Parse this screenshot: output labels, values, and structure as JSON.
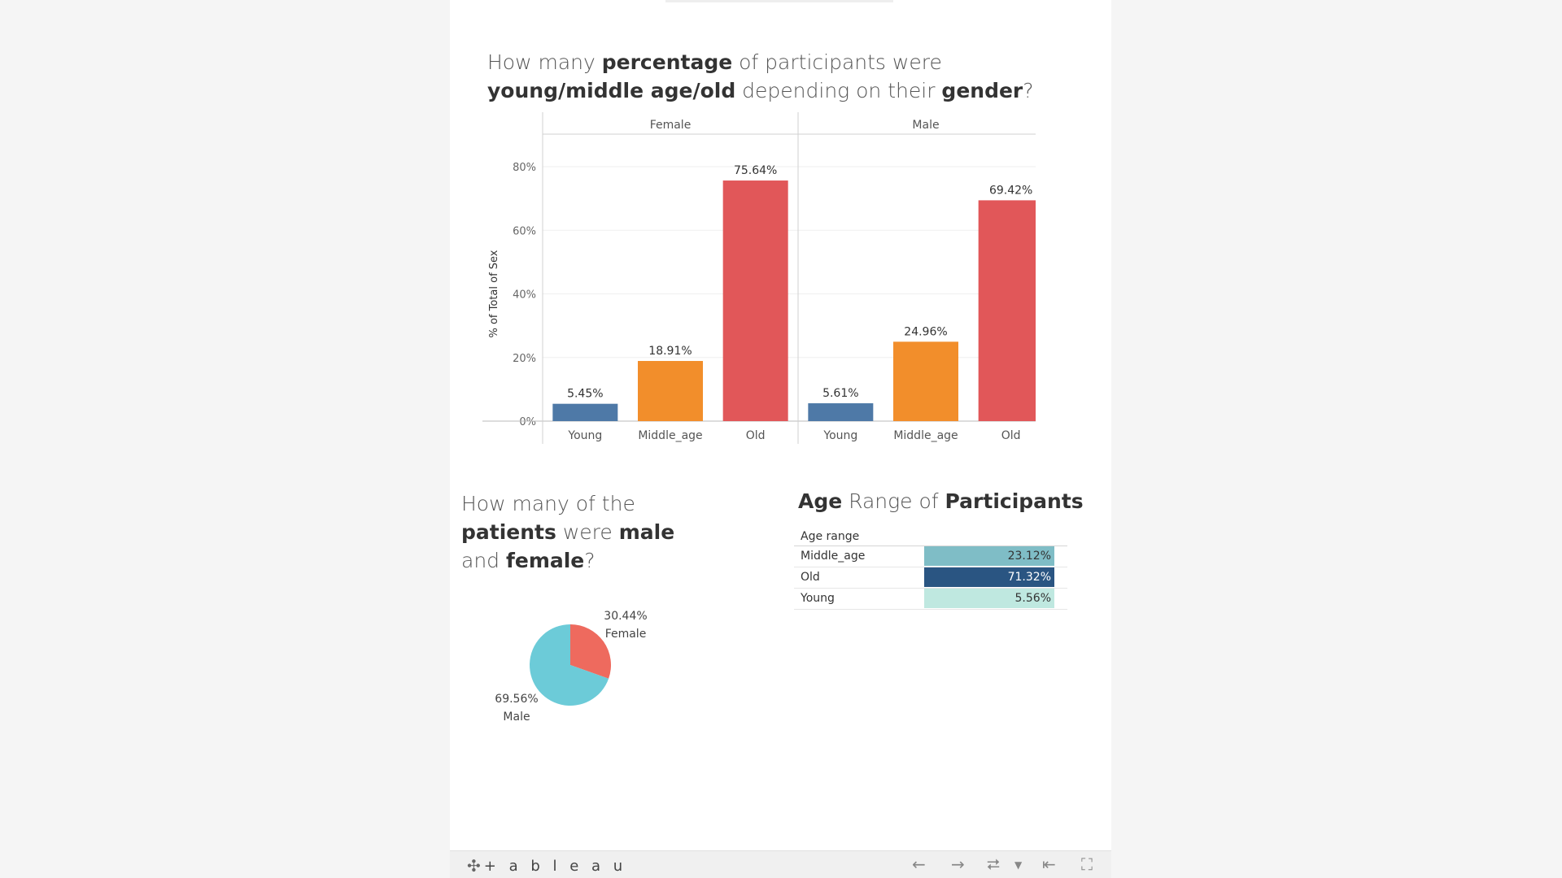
{
  "titles": {
    "bars": [
      {
        "t": "How many ",
        "b": false
      },
      {
        "t": "percentage",
        "b": true
      },
      {
        "t": " of participants were ",
        "b": false
      },
      {
        "t": "young/middle age/old",
        "b": true
      },
      {
        "t": " depending on their ",
        "b": false
      },
      {
        "t": "gender",
        "b": true
      },
      {
        "t": "?",
        "b": false
      }
    ],
    "pie": [
      {
        "t": "How many of the ",
        "b": false
      },
      {
        "t": "patients",
        "b": true
      },
      {
        "t": " were ",
        "b": false
      },
      {
        "t": "male",
        "b": true
      },
      {
        "t": " and ",
        "b": false
      },
      {
        "t": "female",
        "b": true
      },
      {
        "t": "?",
        "b": false
      }
    ],
    "table": [
      {
        "t": "Age",
        "b": true
      },
      {
        "t": " Range of ",
        "b": false
      },
      {
        "t": "Participants",
        "b": true
      }
    ]
  },
  "chart_data": [
    {
      "type": "bar",
      "ylabel": "% of Total of Sex",
      "ylim": [
        0,
        80
      ],
      "yticks": [
        "0%",
        "20%",
        "40%",
        "60%",
        "80%"
      ],
      "ytick_values": [
        0,
        20,
        40,
        60,
        80
      ],
      "categories": [
        "Young",
        "Middle_age",
        "Old"
      ],
      "panels": [
        {
          "name": "Female",
          "values": [
            5.45,
            18.91,
            75.64
          ],
          "labels": [
            "5.45%",
            "18.91%",
            "75.64%"
          ]
        },
        {
          "name": "Male",
          "values": [
            5.61,
            24.96,
            69.42
          ],
          "labels": [
            "5.61%",
            "24.96%",
            "69.42%"
          ]
        }
      ],
      "colors": [
        "#4e79a7",
        "#f28e2b",
        "#e15759"
      ],
      "grid": true
    },
    {
      "type": "pie",
      "slices": [
        {
          "name": "Female",
          "value": 30.44,
          "label": "30.44%",
          "color": "#ee6a5e"
        },
        {
          "name": "Male",
          "value": 69.56,
          "label": "69.56%",
          "color": "#6ccbd8"
        }
      ]
    },
    {
      "type": "table",
      "header": "Age range",
      "rows": [
        {
          "label": "Middle_age",
          "value": 23.12,
          "text": "23.12%",
          "bg": "#7fbdc6",
          "fg": "#333333"
        },
        {
          "label": "Old",
          "value": 71.32,
          "text": "71.32%",
          "bg": "#2a5582",
          "fg": "#ffffff"
        },
        {
          "label": "Young",
          "value": 5.56,
          "text": "5.56%",
          "bg": "#bfe8e0",
          "fg": "#333333"
        }
      ]
    }
  ],
  "footer": {
    "logo": "+ a b l e a u",
    "logo_icon": "tableau-logo-icon",
    "controls": [
      "undo-icon",
      "redo-icon",
      "revert-icon",
      "dropdown-icon",
      "first-icon",
      "fullscreen-icon"
    ]
  }
}
